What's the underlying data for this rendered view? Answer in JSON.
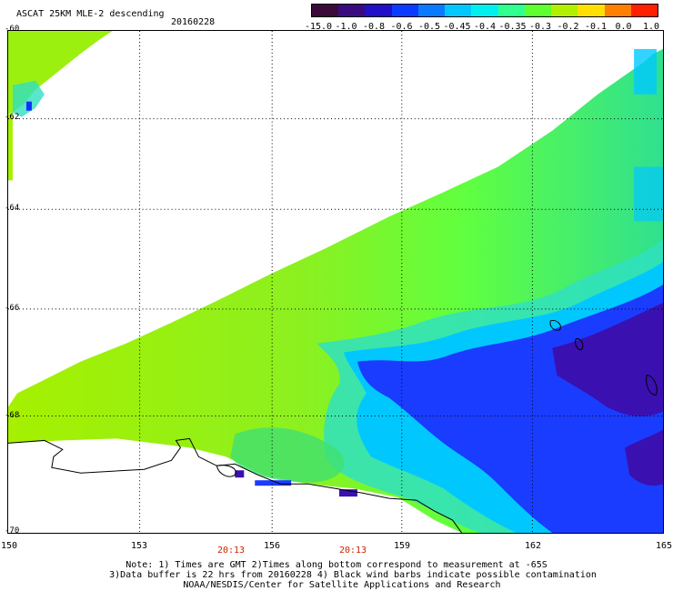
{
  "title": "ASCAT 25KM MLE-2 descending",
  "date": "20160228",
  "colorbar": {
    "labels": [
      "-15.0",
      "-1.0",
      "-0.8",
      "-0.6",
      "-0.5",
      "-0.45",
      "-0.4",
      "-0.35",
      "-0.3",
      "-0.2",
      "-0.1",
      "0.0",
      "1.0"
    ],
    "colors": [
      "#3a0a3a",
      "#3a0a80",
      "#2010c8",
      "#0a3cff",
      "#0a7aff",
      "#00c8ff",
      "#00f0f0",
      "#30ff90",
      "#60ff30",
      "#b0f000",
      "#ffe000",
      "#ff8000",
      "#ff2000"
    ]
  },
  "y_labels": [
    "-60",
    "-62",
    "-64",
    "-66",
    "-68",
    "-70"
  ],
  "x_labels": [
    "150",
    "153",
    "156",
    "159",
    "162",
    "165"
  ],
  "time_labels": [
    "20:13",
    "20:13"
  ],
  "notes": [
    "Note: 1) Times are GMT 2)Times along bottom correspond to measurement at -65S",
    "3)Data buffer is 22 hrs from 20160228 4) Black wind barbs indicate possible contamination",
    "NOAA/NESDIS/Center for Satellite Applications and Research"
  ]
}
